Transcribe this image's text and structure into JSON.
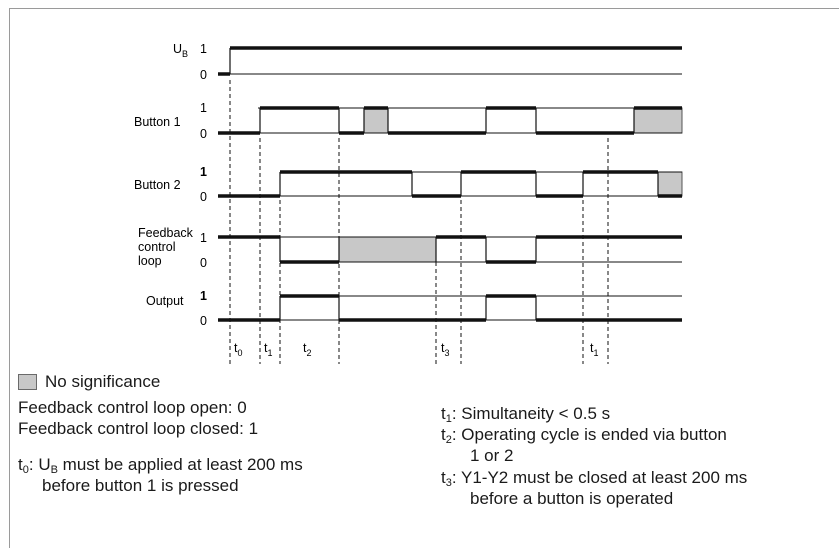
{
  "signals": [
    {
      "id": "ub",
      "label_main": "U",
      "label_sub": "B",
      "high": "1",
      "low": "0"
    },
    {
      "id": "button1",
      "label": "Button 1",
      "high": "1",
      "low": "0"
    },
    {
      "id": "button2",
      "label": "Button 2",
      "high": "1",
      "low": "0"
    },
    {
      "id": "feedback",
      "label_lines": [
        "Feedback",
        "control",
        "loop"
      ],
      "high": "1",
      "low": "0"
    },
    {
      "id": "output",
      "label": "Output",
      "high": "1",
      "low": "0"
    }
  ],
  "time_markers": [
    {
      "main": "t",
      "sub": "0"
    },
    {
      "main": "t",
      "sub": "1"
    },
    {
      "main": "t",
      "sub": "2"
    },
    {
      "main": "t",
      "sub": "3"
    },
    {
      "main": "t",
      "sub": "1"
    }
  ],
  "legend": {
    "no_significance": "No significance",
    "open": "Feedback control loop open: 0",
    "closed": "Feedback control loop closed: 1",
    "t0_prefix": "t",
    "t0_sub": "0",
    "t0_colon": ":",
    "t0_ub_main": "U",
    "t0_ub_sub": "B",
    "t0_text1": " must be applied at least 200 ms",
    "t0_text2": "before button 1 is pressed",
    "t1_prefix": "t",
    "t1_sub": "1",
    "t1_text": ": Simultaneity < 0.5 s",
    "t2_prefix": "t",
    "t2_sub": "2",
    "t2_text1": ": Operating cycle is ended via button",
    "t2_text2": "1 or 2",
    "t3_prefix": "t",
    "t3_sub": "3",
    "t3_text1": ": Y1-Y2 must be closed at least 200 ms",
    "t3_text2": "before a button is operated"
  },
  "colors": {
    "line": "#111111",
    "no_significance_fill": "#c8c8c8",
    "frame": "#9a9a9a"
  }
}
